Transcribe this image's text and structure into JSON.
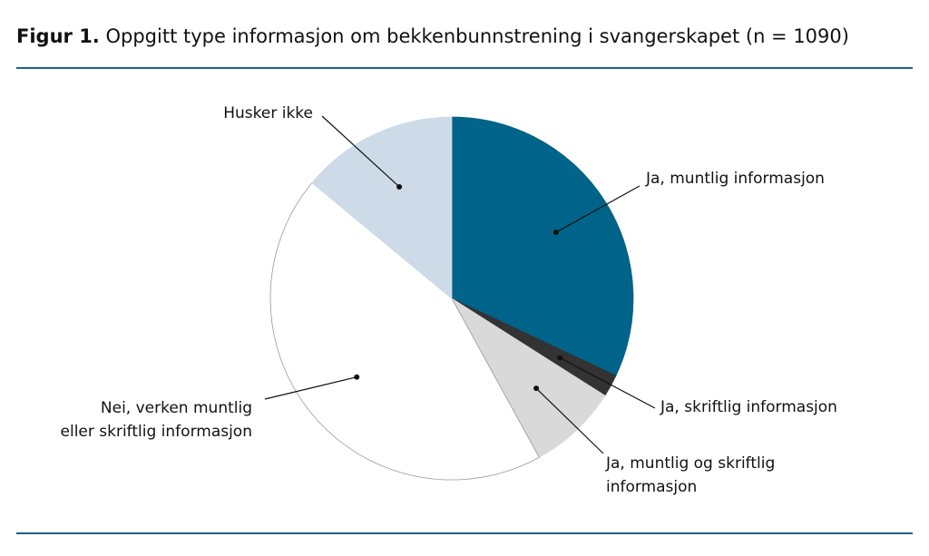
{
  "chart_data": {
    "type": "pie",
    "title_label": "Figur 1.",
    "title": "Oppgitt type informasjon om bekkenbunnstrening i svangerskapet (n = 1090)",
    "categories": [
      "Ja, muntlig informasjon",
      "Ja, skriftlig informasjon",
      "Ja, muntlig og skriftlig\ninformasjon",
      "Nei, verken muntlig\neller skriftlig informasjon",
      "Husker ikke"
    ],
    "values": [
      32,
      2,
      8,
      44,
      14
    ],
    "colors": [
      "#006389",
      "#333333",
      "#d9d9d9",
      "#ffffff",
      "#cddbe8"
    ]
  }
}
